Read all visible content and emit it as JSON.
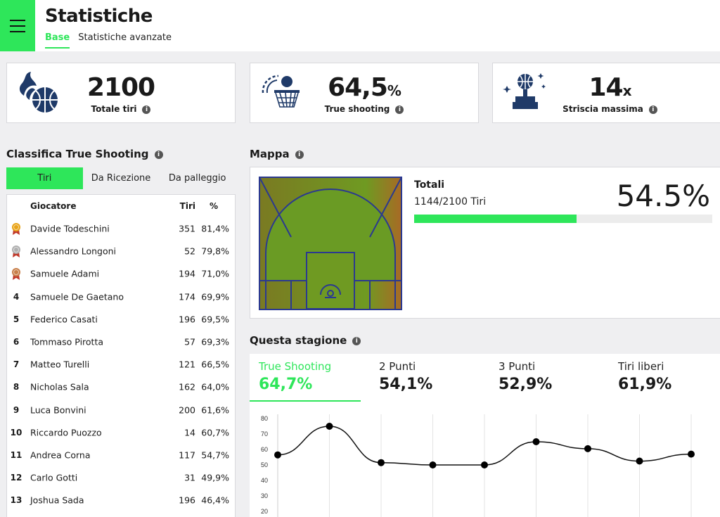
{
  "header": {
    "title": "Statistiche",
    "tabs": [
      "Base",
      "Statistiche avanzate"
    ]
  },
  "stats": [
    {
      "value": "2100",
      "unit": "",
      "label": "Totale tiri",
      "icon": "basketball-fire-icon"
    },
    {
      "value": "64,5",
      "unit": "%",
      "label": "True shooting",
      "icon": "basket-hoop-icon"
    },
    {
      "value": "14",
      "unit": "x",
      "label": "Striscia massima",
      "icon": "trophy-icon"
    }
  ],
  "leaderboard": {
    "title": "Classifica True Shooting",
    "tabs": [
      "Tiri",
      "Da Ricezione",
      "Da palleggio"
    ],
    "columns": [
      "Giocatore",
      "Tiri",
      "%"
    ],
    "rows": [
      {
        "rank": "1",
        "name": "Davide Todeschini",
        "shots": "351",
        "pct": "81,4%"
      },
      {
        "rank": "2",
        "name": "Alessandro Longoni",
        "shots": "52",
        "pct": "79,8%"
      },
      {
        "rank": "3",
        "name": "Samuele Adami",
        "shots": "194",
        "pct": "71,0%"
      },
      {
        "rank": "4",
        "name": "Samuele De Gaetano",
        "shots": "174",
        "pct": "69,9%"
      },
      {
        "rank": "5",
        "name": "Federico Casati",
        "shots": "196",
        "pct": "69,5%"
      },
      {
        "rank": "6",
        "name": "Tommaso Pirotta",
        "shots": "57",
        "pct": "69,3%"
      },
      {
        "rank": "7",
        "name": "Matteo Turelli",
        "shots": "121",
        "pct": "66,5%"
      },
      {
        "rank": "8",
        "name": "Nicholas Sala",
        "shots": "162",
        "pct": "64,0%"
      },
      {
        "rank": "9",
        "name": "Luca Bonvini",
        "shots": "200",
        "pct": "61,6%"
      },
      {
        "rank": "10",
        "name": "Riccardo Puozzo",
        "shots": "14",
        "pct": "60,7%"
      },
      {
        "rank": "11",
        "name": "Andrea Corna",
        "shots": "117",
        "pct": "54,7%"
      },
      {
        "rank": "12",
        "name": "Carlo Gotti",
        "shots": "31",
        "pct": "49,9%"
      },
      {
        "rank": "13",
        "name": "Joshua Sada",
        "shots": "196",
        "pct": "46,4%"
      }
    ],
    "medal_colors": [
      "#e8a317",
      "#b0b0b0",
      "#c87f4a"
    ]
  },
  "map": {
    "title": "Mappa",
    "totals_label": "Totali",
    "totals_sub": "1144/2100 Tiri",
    "percent_text": "54.5%",
    "percent_value": 54.5
  },
  "season": {
    "title": "Questa stagione",
    "tabs": [
      {
        "label": "True Shooting",
        "value": "64,7%"
      },
      {
        "label": "2 Punti",
        "value": "54,1%"
      },
      {
        "label": "3 Punti",
        "value": "52,9%"
      },
      {
        "label": "Tiri liberi",
        "value": "61,9%"
      }
    ]
  },
  "colors": {
    "accent": "#2ee65a",
    "court_line": "#2b3990"
  },
  "chart_data": {
    "type": "line",
    "title": "",
    "y_ticks": [
      80,
      70,
      60,
      50,
      40,
      30,
      20
    ],
    "ylim": [
      20,
      80
    ],
    "values": [
      56.5,
      75,
      51.5,
      50,
      50,
      65,
      60.5,
      52.5,
      57
    ]
  }
}
